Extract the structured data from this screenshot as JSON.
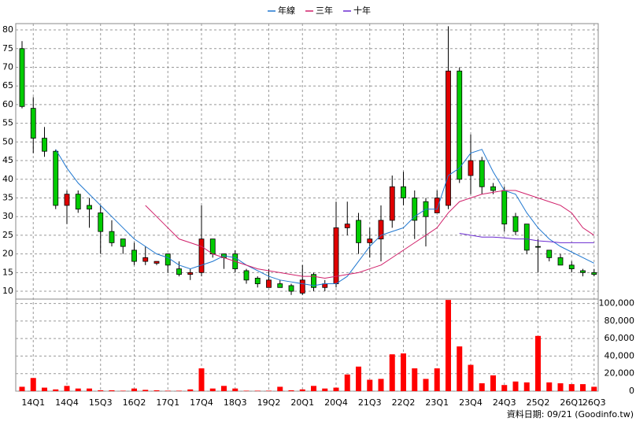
{
  "chart_data": {
    "type": "candlestick",
    "categories": [
      null,
      "14Q1",
      null,
      null,
      "14Q4",
      null,
      null,
      "15Q3",
      null,
      null,
      "16Q2",
      null,
      null,
      "17Q1",
      null,
      null,
      "17Q4",
      null,
      null,
      "18Q3",
      null,
      null,
      "19Q2",
      null,
      null,
      "20Q1",
      null,
      null,
      "20Q4",
      null,
      null,
      "21Q3",
      null,
      null,
      "22Q2",
      null,
      null,
      "23Q1",
      null,
      null,
      "23Q4",
      null,
      null,
      "24Q3",
      null,
      null,
      "25Q2",
      null,
      null,
      "26Q1",
      null,
      "26Q3"
    ],
    "open": [
      75,
      59,
      51,
      47.5,
      33,
      36,
      33,
      31,
      26,
      24,
      21,
      18,
      17.5,
      20,
      16,
      14.5,
      15,
      24,
      20,
      20,
      15.5,
      13.5,
      11,
      12,
      11.5,
      9.5,
      14.5,
      11,
      12,
      27,
      29,
      23,
      24,
      29,
      38,
      35,
      34,
      31,
      33,
      69,
      41,
      45,
      38,
      37,
      30,
      28,
      22,
      21,
      19,
      17,
      15.5,
      15
    ],
    "high": [
      77,
      62,
      54,
      48,
      37,
      37,
      35,
      33,
      29,
      24,
      23,
      22,
      18,
      20,
      18,
      16,
      33,
      24,
      20,
      21,
      16,
      14,
      16,
      13,
      12,
      17,
      15,
      13,
      34,
      34,
      31,
      27,
      33,
      41,
      42,
      37,
      35,
      37,
      81,
      70,
      52,
      46,
      39,
      38,
      31,
      28,
      24,
      21,
      20,
      18,
      16,
      16
    ],
    "low": [
      59,
      47,
      46,
      32,
      28,
      31,
      27,
      20,
      22,
      20,
      17,
      17,
      17,
      15,
      14,
      13,
      14,
      19,
      16,
      15,
      12,
      11,
      11,
      11,
      9,
      9,
      10,
      10,
      11,
      25,
      20,
      19,
      18,
      27,
      33,
      24,
      22,
      31,
      32,
      39,
      36,
      36,
      36,
      26,
      25,
      20,
      15,
      18,
      17,
      15,
      14,
      14
    ],
    "close": [
      59.5,
      51,
      47.5,
      33,
      36,
      32,
      32,
      26,
      23,
      22,
      18,
      19,
      18,
      17,
      14.5,
      15,
      24,
      20,
      19,
      16,
      13,
      12,
      13,
      11,
      10,
      13,
      11,
      12,
      27,
      28,
      23,
      24,
      29,
      38,
      35,
      29,
      30,
      35,
      69,
      40,
      45,
      38,
      37,
      28,
      26,
      21,
      22,
      19,
      17,
      16,
      15,
      14.5
    ],
    "up_color": "#e00000",
    "down_color": "#00cc00",
    "ylim": [
      7.9,
      81.7
    ],
    "yticks": [
      10,
      15,
      20,
      25,
      30,
      35,
      40,
      45,
      50,
      55,
      60,
      65,
      70,
      75,
      80
    ],
    "series": [
      {
        "name": "年線",
        "color": "#1f77d0",
        "values": [
          null,
          null,
          null,
          48,
          43,
          39,
          36,
          33,
          30,
          27,
          24,
          22,
          20,
          19,
          17,
          16,
          17,
          18,
          19.5,
          19,
          17,
          15.5,
          14,
          13,
          12.5,
          12,
          11.5,
          12,
          12,
          14,
          18,
          22,
          25,
          26,
          27,
          30,
          32,
          32,
          41,
          43,
          47,
          48,
          42,
          37,
          36,
          31,
          27,
          24,
          22,
          20.5,
          19,
          17.5
        ]
      },
      {
        "name": "三年",
        "color": "#d0206a",
        "values": [
          null,
          null,
          null,
          null,
          null,
          null,
          null,
          null,
          null,
          null,
          null,
          33,
          30,
          27,
          24,
          23,
          22,
          20,
          19,
          18,
          17,
          16,
          15.5,
          15,
          14.5,
          14,
          14,
          13.5,
          14,
          14.5,
          15,
          16,
          17,
          19,
          21,
          23,
          25,
          27,
          31,
          34,
          35,
          36,
          36.5,
          37,
          37,
          36,
          35,
          34,
          33,
          31,
          27,
          25
        ]
      },
      {
        "name": "十年",
        "color": "#6a2ad0",
        "values": [
          null,
          null,
          null,
          null,
          null,
          null,
          null,
          null,
          null,
          null,
          null,
          null,
          null,
          null,
          null,
          null,
          null,
          null,
          null,
          null,
          null,
          null,
          null,
          null,
          null,
          null,
          null,
          null,
          null,
          null,
          null,
          null,
          null,
          null,
          null,
          null,
          null,
          null,
          null,
          25.5,
          25,
          24.5,
          24.5,
          24.3,
          24,
          24,
          23.5,
          23.3,
          23,
          23,
          23,
          23
        ]
      }
    ],
    "volume": {
      "color": "#ff0000",
      "values": [
        5000,
        15000,
        4000,
        2000,
        6000,
        3000,
        3000,
        1000,
        1000,
        500,
        3000,
        1500,
        1000,
        500,
        500,
        2000,
        26000,
        3000,
        6000,
        3000,
        500,
        500,
        500,
        5000,
        1000,
        2000,
        6000,
        3000,
        4000,
        19000,
        28000,
        13000,
        14000,
        42000,
        43000,
        26000,
        14000,
        26000,
        104000,
        51000,
        30000,
        9000,
        18000,
        7000,
        11000,
        10000,
        63000,
        10000,
        9000,
        8000,
        8000,
        5000
      ],
      "y2lim": [
        0,
        105000
      ],
      "y2ticks": [
        0,
        {
          "value": 20000,
          "label": "20,000"
        },
        {
          "value": 40000,
          "label": "40,000"
        },
        {
          "value": 60000,
          "label": "60,000"
        },
        {
          "value": 80000,
          "label": "80,000"
        },
        {
          "value": 100000,
          "label": "100,000"
        }
      ]
    },
    "grid": true,
    "note": "資料日期: 09/21 (Goodinfo.tw)"
  }
}
